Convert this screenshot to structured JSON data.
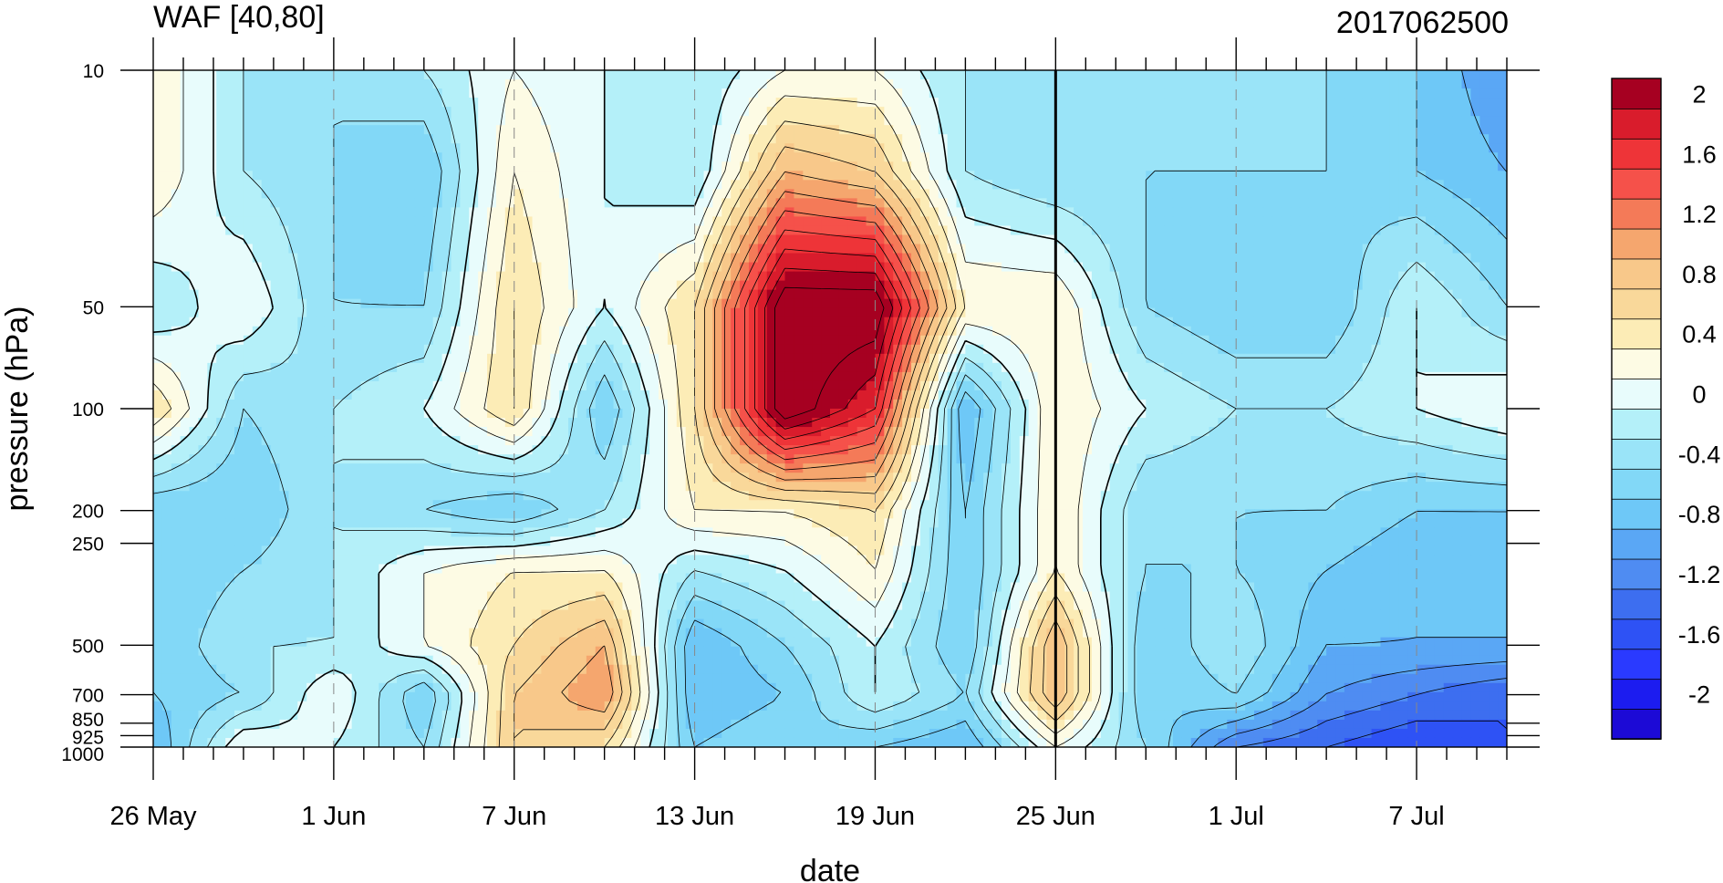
{
  "chart_data": {
    "type": "heatmap",
    "title_left": "WAF [40,80]",
    "title_right": "2017062500",
    "xlabel": "date",
    "ylabel": "pressure (hPa)",
    "x_tick_labels": [
      "26 May",
      "1 Jun",
      "7 Jun",
      "13 Jun",
      "19 Jun",
      "25 Jun",
      "1 Jul",
      "7 Jul"
    ],
    "x_tick_day_offsets": [
      0,
      6,
      12,
      18,
      24,
      30,
      36,
      42
    ],
    "x_range_days": [
      0,
      45
    ],
    "marked_day": 30,
    "y_scale": "log",
    "y_ticks": [
      10,
      50,
      100,
      200,
      250,
      500,
      700,
      850,
      925,
      1000
    ],
    "y_tick_labels": [
      "10",
      "50",
      "100",
      "200",
      "250",
      "500",
      "700",
      "850",
      "925",
      "1000"
    ],
    "y_range": [
      1000,
      10
    ],
    "colorbar_levels": [
      -2.2,
      -2.0,
      -1.8,
      -1.6,
      -1.4,
      -1.2,
      -1.0,
      -0.8,
      -0.6,
      -0.4,
      -0.2,
      0,
      0.2,
      0.4,
      0.6,
      0.8,
      1.0,
      1.2,
      1.4,
      1.6,
      1.8,
      2.0,
      2.2
    ],
    "colorbar_labels": [
      "2",
      "1.6",
      "1.2",
      "0.8",
      "0.4",
      "0",
      "-0.4",
      "-0.8",
      "-1.2",
      "-1.6",
      "-2"
    ],
    "colorbar_label_values": [
      2,
      1.6,
      1.2,
      0.8,
      0.4,
      0,
      -0.4,
      -0.8,
      -1.2,
      -1.6,
      -2
    ],
    "colormap_low_to_high": [
      "#1c0ad6",
      "#1c1cf0",
      "#2a3aff",
      "#2e52f5",
      "#3d6ef0",
      "#4f8cf2",
      "#5aa7f5",
      "#6ec8f7",
      "#82d8f7",
      "#9ae4f8",
      "#b4f0f9",
      "#e8fcfc",
      "#fdfbe4",
      "#fcecb6",
      "#f9d89a",
      "#f8c88a",
      "#f5a66e",
      "#f47a58",
      "#f5514a",
      "#ee3438",
      "#d91c2c",
      "#a60021"
    ],
    "data_grid_days": [
      0,
      3,
      6,
      9,
      12,
      15,
      18,
      21,
      24,
      27,
      30,
      33,
      36,
      39,
      42,
      45
    ],
    "data_grid_levels": [
      10,
      20,
      50,
      100,
      200,
      300,
      500,
      700,
      1000
    ],
    "values": [
      [
        0.4,
        -0.2,
        -0.4,
        -0.2,
        0.2,
        0.0,
        -0.2,
        0.2,
        0.2,
        -0.2,
        -0.4,
        -0.4,
        -0.4,
        -0.4,
        -0.6,
        -1.0
      ],
      [
        0.4,
        -0.2,
        -0.4,
        -0.6,
        0.4,
        0.0,
        -0.2,
        1.0,
        0.8,
        -0.2,
        -0.4,
        -0.4,
        -0.4,
        -0.4,
        -0.6,
        -0.8
      ],
      [
        -0.2,
        0.2,
        -0.4,
        -0.4,
        0.6,
        0.0,
        0.6,
        2.4,
        2.4,
        0.4,
        0.4,
        -0.4,
        -0.6,
        -0.6,
        0.0,
        -0.4
      ],
      [
        0.6,
        -0.4,
        -0.2,
        0.0,
        0.6,
        -0.6,
        0.6,
        2.4,
        1.8,
        -0.8,
        0.4,
        0.0,
        -0.2,
        -0.2,
        0.0,
        0.2
      ],
      [
        -0.6,
        -0.6,
        -0.2,
        -0.4,
        -0.6,
        -0.2,
        0.4,
        0.4,
        0.6,
        -0.6,
        0.4,
        -0.4,
        -0.4,
        -0.4,
        -0.6,
        -0.6
      ],
      [
        -0.6,
        -0.4,
        -0.2,
        0.2,
        0.4,
        0.4,
        -0.2,
        0.0,
        0.4,
        -0.6,
        0.4,
        -0.4,
        -0.4,
        -0.6,
        -0.8,
        -0.8
      ],
      [
        -0.6,
        -0.2,
        -0.2,
        0.2,
        0.6,
        1.0,
        -0.8,
        -0.4,
        0.0,
        -0.6,
        1.0,
        -0.6,
        -0.2,
        -0.8,
        -0.8,
        -0.8
      ],
      [
        -0.6,
        -0.4,
        0.2,
        -0.6,
        0.8,
        1.2,
        -0.8,
        -0.6,
        0.0,
        -0.4,
        1.0,
        -0.6,
        -0.4,
        -1.0,
        -1.2,
        -1.4
      ],
      [
        -0.8,
        0.2,
        0.0,
        -0.4,
        0.8,
        0.6,
        -0.6,
        -0.4,
        -0.6,
        -0.8,
        0.2,
        -0.4,
        -1.2,
        -1.4,
        -1.6,
        -1.4
      ]
    ]
  }
}
